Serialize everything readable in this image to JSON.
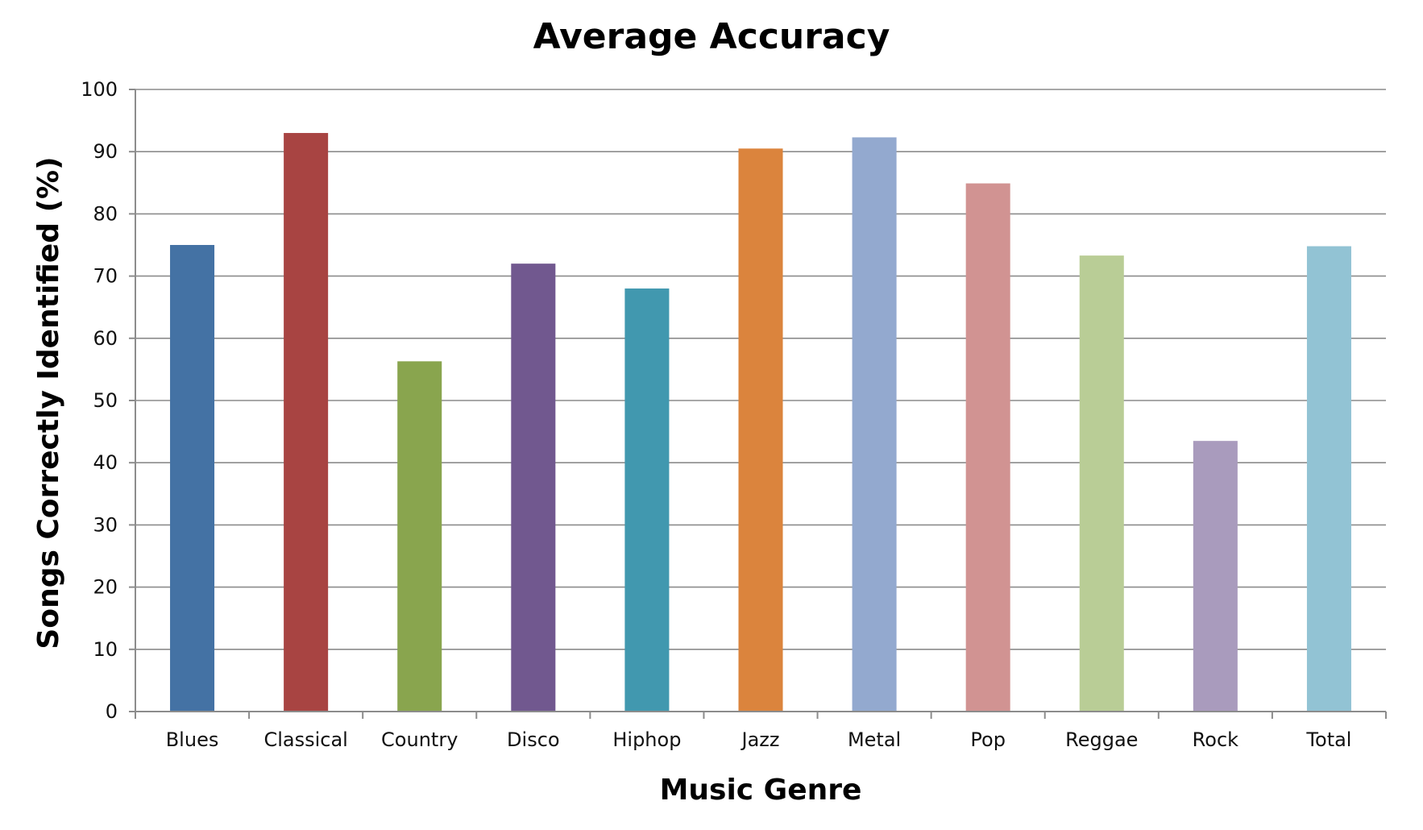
{
  "chart_data": {
    "type": "bar",
    "title": "Average Accuracy",
    "xlabel": "Music Genre",
    "ylabel": "Songs Correctly Identified (%)",
    "ylim": [
      0,
      100
    ],
    "yticks": [
      0,
      10,
      20,
      30,
      40,
      50,
      60,
      70,
      80,
      90,
      100
    ],
    "grid": true,
    "legend": "none",
    "categories": [
      "Blues",
      "Classical",
      "Country",
      "Disco",
      "Hiphop",
      "Jazz",
      "Metal",
      "Pop",
      "Reggae",
      "Rock",
      "Total"
    ],
    "values": [
      75,
      93,
      56.3,
      72,
      68,
      90.5,
      92.3,
      84.9,
      73.3,
      43.5,
      74.8
    ],
    "colors": [
      "#4472a4",
      "#a84442",
      "#89a54e",
      "#71588f",
      "#4198af",
      "#db843d",
      "#93a9cf",
      "#d19392",
      "#b9cd96",
      "#a99bbd",
      "#92c3d4"
    ]
  }
}
